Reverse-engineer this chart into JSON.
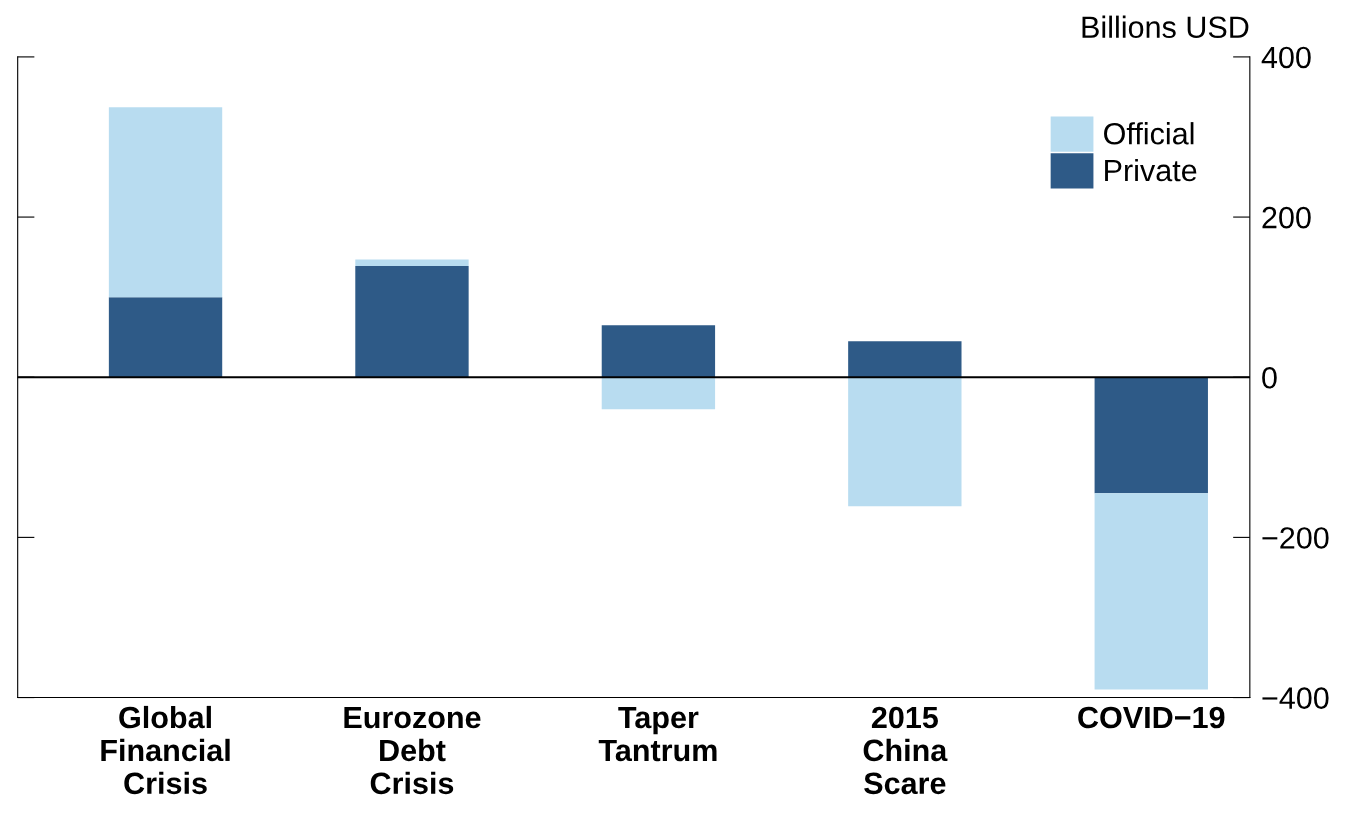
{
  "chart_data": {
    "type": "bar",
    "stacked": true,
    "ylabel": "Billions USD",
    "categories": [
      "Global\nFinancial\nCrisis",
      "Eurozone\nDebt\nCrisis",
      "Taper\nTantrum",
      "2015\nChina\nScare",
      "COVID−19"
    ],
    "series": [
      {
        "name": "Private",
        "color": "#2e5a87",
        "values": [
          100,
          139,
          65,
          45,
          -145
        ]
      },
      {
        "name": "Official",
        "color": "#b8dcf0",
        "values": [
          237,
          8,
          -40,
          -161,
          -245
        ]
      }
    ],
    "ylim": [
      -400,
      400
    ],
    "yticks": [
      {
        "value": -400,
        "label": "−400"
      },
      {
        "value": -200,
        "label": "−200"
      },
      0,
      200,
      400
    ],
    "ref_lines": [
      {
        "axis": "y",
        "value": 0,
        "color": "#000000"
      }
    ],
    "grid": false,
    "legend": "top right"
  }
}
